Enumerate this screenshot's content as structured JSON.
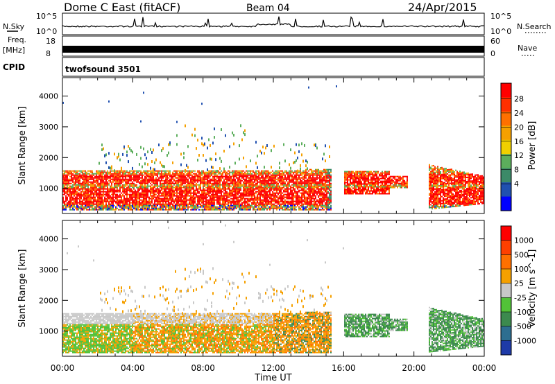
{
  "header": {
    "station": "Dome C East (fitACF)",
    "beam": "Beam 04",
    "date": "24/Apr/2015"
  },
  "strips": {
    "nsky_label": "N.Sky",
    "nsky_ticks": [
      "10^5",
      "10^0"
    ],
    "nsearch_label": "N.Search",
    "nsearch_ticks": [
      "10^5",
      "10^0"
    ],
    "freq_label": "Freq.",
    "freq_unit": "[MHz]",
    "freq_ticks": [
      "18",
      "8"
    ],
    "nave_label": "Nave",
    "nave_ticks": [
      "60",
      "0"
    ],
    "cpid_label": "CPID",
    "cpid_value": "twofsound 3501"
  },
  "chart_data": [
    {
      "type": "heatmap",
      "name": "power",
      "xlabel": "Time UT",
      "ylabel": "Slant Range [km]",
      "xlim_hours": [
        0,
        24
      ],
      "ylim_km": [
        180,
        4600
      ],
      "yticks": [
        "4000",
        "3000",
        "2000",
        "1000"
      ],
      "colorbar": {
        "label": "Power [dB]",
        "ticks": [
          "28",
          "24",
          "20",
          "16",
          "12",
          "8",
          "4"
        ],
        "range": [
          0,
          30
        ],
        "colors": [
          "#0000ff",
          "#2050b0",
          "#3c8a68",
          "#5cae5c",
          "#f0d000",
          "#f5a000",
          "#ff7000",
          "#ff3000",
          "#ff0000"
        ]
      },
      "scatter_regions": [
        {
          "t0": 0.0,
          "t1": 15.3,
          "r0": 300,
          "r1": 1600,
          "level": "high"
        },
        {
          "t0": 16.0,
          "t1": 18.5,
          "r0": 800,
          "r1": 1600,
          "level": "high"
        },
        {
          "t0": 21.0,
          "t1": 24.0,
          "r0": 400,
          "r1": 1700,
          "level": "high"
        },
        {
          "t0": 2.0,
          "t1": 15.3,
          "r0": 1600,
          "r1": 3200,
          "level": "low"
        }
      ]
    },
    {
      "type": "heatmap",
      "name": "velocity",
      "xlabel": "Time UT",
      "ylabel": "Slant Range [km]",
      "xlim_hours": [
        0,
        24
      ],
      "ylim_km": [
        180,
        4600
      ],
      "yticks": [
        "4000",
        "3000",
        "2000",
        "1000"
      ],
      "xticks": [
        "00:00",
        "04:00",
        "08:00",
        "12:00",
        "16:00",
        "20:00",
        "00:00"
      ],
      "colorbar": {
        "label": "Velocity [m s^-1]",
        "ticks": [
          "1000",
          "500",
          "100",
          "25",
          "-25",
          "-100",
          "-500",
          "-1000"
        ],
        "colors": [
          "#1e3aa8",
          "#2d6e90",
          "#3c8a4e",
          "#52c238",
          "#c8c8c8",
          "#f5a000",
          "#ff7000",
          "#ff4000",
          "#ff0000"
        ]
      }
    }
  ]
}
